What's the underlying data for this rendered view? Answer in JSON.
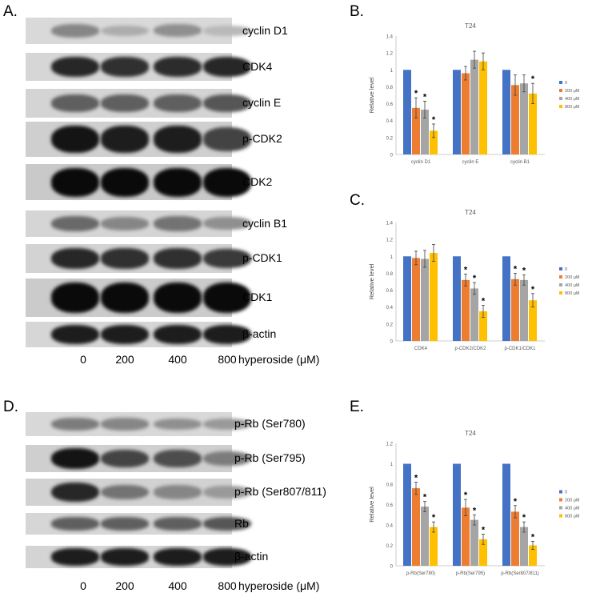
{
  "panels": {
    "A": {
      "letter": "A.",
      "rows": [
        {
          "label": "cyclin D1",
          "bands": [
            0.35,
            0.15,
            0.3,
            0.08
          ],
          "bg": "#d9d9d9"
        },
        {
          "label": "CDK4",
          "bands": [
            0.85,
            0.8,
            0.82,
            0.85
          ],
          "bg": "#d6d6d6"
        },
        {
          "label": "cyclin E",
          "bands": [
            0.55,
            0.55,
            0.55,
            0.6
          ],
          "bg": "#d4d4d4"
        },
        {
          "label": "p-CDK2",
          "bands": [
            0.95,
            0.9,
            0.9,
            0.7
          ],
          "bg": "#cfcfcf"
        },
        {
          "label": "CDK2",
          "bands": [
            1.0,
            1.0,
            1.0,
            1.0
          ],
          "bg": "#c9c9c9"
        },
        {
          "label": "cyclin B1",
          "bands": [
            0.5,
            0.35,
            0.45,
            0.3
          ],
          "bg": "#d5d5d5"
        },
        {
          "label": "p-CDK1",
          "bands": [
            0.85,
            0.8,
            0.8,
            0.75
          ],
          "bg": "#d3d3d3"
        },
        {
          "label": "CDK1",
          "bands": [
            1.0,
            1.0,
            1.0,
            1.0
          ],
          "bg": "#cbcbcb"
        },
        {
          "label": "β-actin",
          "bands": [
            0.9,
            0.9,
            0.9,
            0.9
          ],
          "bg": "#d6d6d6"
        }
      ],
      "lanes": [
        "0",
        "200",
        "400",
        "800"
      ],
      "axis_title": "hyperoside (μM)"
    },
    "D": {
      "letter": "D.",
      "rows": [
        {
          "label": "p-Rb (Ser780)",
          "bands": [
            0.4,
            0.35,
            0.3,
            0.25
          ],
          "bg": "#d8d8d8"
        },
        {
          "label": "p-Rb (Ser795)",
          "bands": [
            0.95,
            0.7,
            0.65,
            0.4
          ],
          "bg": "#cfcfcf"
        },
        {
          "label": "p-Rb (Ser807/811)",
          "bands": [
            0.85,
            0.45,
            0.35,
            0.25
          ],
          "bg": "#d2d2d2"
        },
        {
          "label": "Rb",
          "bands": [
            0.55,
            0.55,
            0.55,
            0.6
          ],
          "bg": "#d6d6d6"
        },
        {
          "label": "β-actin",
          "bands": [
            0.9,
            0.9,
            0.9,
            0.9
          ],
          "bg": "#d4d4d4"
        }
      ],
      "lanes": [
        "0",
        "200",
        "400",
        "800"
      ],
      "axis_title": "hyperoside (μM)"
    },
    "B": {
      "letter": "B."
    },
    "C": {
      "letter": "C."
    },
    "E": {
      "letter": "E."
    }
  },
  "colors": {
    "s0": "#4472C4",
    "s200": "#ED7D31",
    "s400": "#A5A5A5",
    "s800": "#FFC000"
  },
  "chart_data": [
    {
      "type": "bar",
      "title": "T24",
      "ylabel": "Relative level",
      "xlabel": "",
      "ylim": [
        0,
        1.4
      ],
      "yticks": [
        "0",
        "0.2",
        "0.4",
        "0.6",
        "0.8",
        "1",
        "1.2",
        "1.4"
      ],
      "categories": [
        "cyclin D1",
        "cyclin E",
        "cyclin B1"
      ],
      "legend_position": "right",
      "series": [
        {
          "name": "0",
          "values": [
            1.0,
            1.0,
            1.0
          ],
          "errors": [
            0,
            0,
            0
          ],
          "sig": [
            false,
            false,
            false
          ]
        },
        {
          "name": "200 μM",
          "values": [
            0.55,
            0.96,
            0.82
          ],
          "errors": [
            0.12,
            0.08,
            0.12
          ],
          "sig": [
            true,
            false,
            false
          ]
        },
        {
          "name": "400 μM",
          "values": [
            0.53,
            1.12,
            0.84
          ],
          "errors": [
            0.1,
            0.1,
            0.1
          ],
          "sig": [
            true,
            false,
            false
          ]
        },
        {
          "name": "800 μM",
          "values": [
            0.28,
            1.1,
            0.72
          ],
          "errors": [
            0.08,
            0.1,
            0.12
          ],
          "sig": [
            true,
            false,
            true
          ]
        }
      ]
    },
    {
      "type": "bar",
      "title": "T24",
      "ylabel": "Relative level",
      "xlabel": "",
      "ylim": [
        0,
        1.4
      ],
      "yticks": [
        "0",
        "0.2",
        "0.4",
        "0.6",
        "0.8",
        "1",
        "1.2",
        "1.4"
      ],
      "categories": [
        "CDK4",
        "p-CDK2/CDK2",
        "p-CDK1/CDK1"
      ],
      "legend_position": "right",
      "series": [
        {
          "name": "0",
          "values": [
            1.0,
            1.0,
            1.0
          ],
          "errors": [
            0,
            0,
            0
          ],
          "sig": [
            false,
            false,
            false
          ]
        },
        {
          "name": "200 μM",
          "values": [
            0.98,
            0.72,
            0.73
          ],
          "errors": [
            0.08,
            0.07,
            0.07
          ],
          "sig": [
            false,
            true,
            true
          ]
        },
        {
          "name": "400 μM",
          "values": [
            0.97,
            0.62,
            0.72
          ],
          "errors": [
            0.1,
            0.07,
            0.06
          ],
          "sig": [
            false,
            true,
            true
          ]
        },
        {
          "name": "800 μM",
          "values": [
            1.04,
            0.35,
            0.48
          ],
          "errors": [
            0.1,
            0.07,
            0.08
          ],
          "sig": [
            false,
            true,
            true
          ]
        }
      ]
    },
    {
      "type": "bar",
      "title": "T24",
      "ylabel": "Relative level",
      "xlabel": "",
      "ylim": [
        0,
        1.2
      ],
      "yticks": [
        "0",
        "0.2",
        "0.4",
        "0.6",
        "0.8",
        "1",
        "1.2"
      ],
      "categories": [
        "p-Rb(Ser780)",
        "p-Rb(Ser795)",
        "p-Rb(Ser807/811)"
      ],
      "legend_position": "right",
      "series": [
        {
          "name": "0",
          "values": [
            1.0,
            1.0,
            1.0
          ],
          "errors": [
            0,
            0,
            0
          ],
          "sig": [
            false,
            false,
            false
          ]
        },
        {
          "name": "200 μM",
          "values": [
            0.76,
            0.57,
            0.53
          ],
          "errors": [
            0.06,
            0.08,
            0.06
          ],
          "sig": [
            true,
            true,
            true
          ]
        },
        {
          "name": "400 μM",
          "values": [
            0.58,
            0.45,
            0.38
          ],
          "errors": [
            0.05,
            0.05,
            0.05
          ],
          "sig": [
            true,
            true,
            true
          ]
        },
        {
          "name": "800 μM",
          "values": [
            0.38,
            0.26,
            0.2
          ],
          "errors": [
            0.05,
            0.05,
            0.04
          ],
          "sig": [
            true,
            true,
            true
          ]
        }
      ]
    }
  ]
}
